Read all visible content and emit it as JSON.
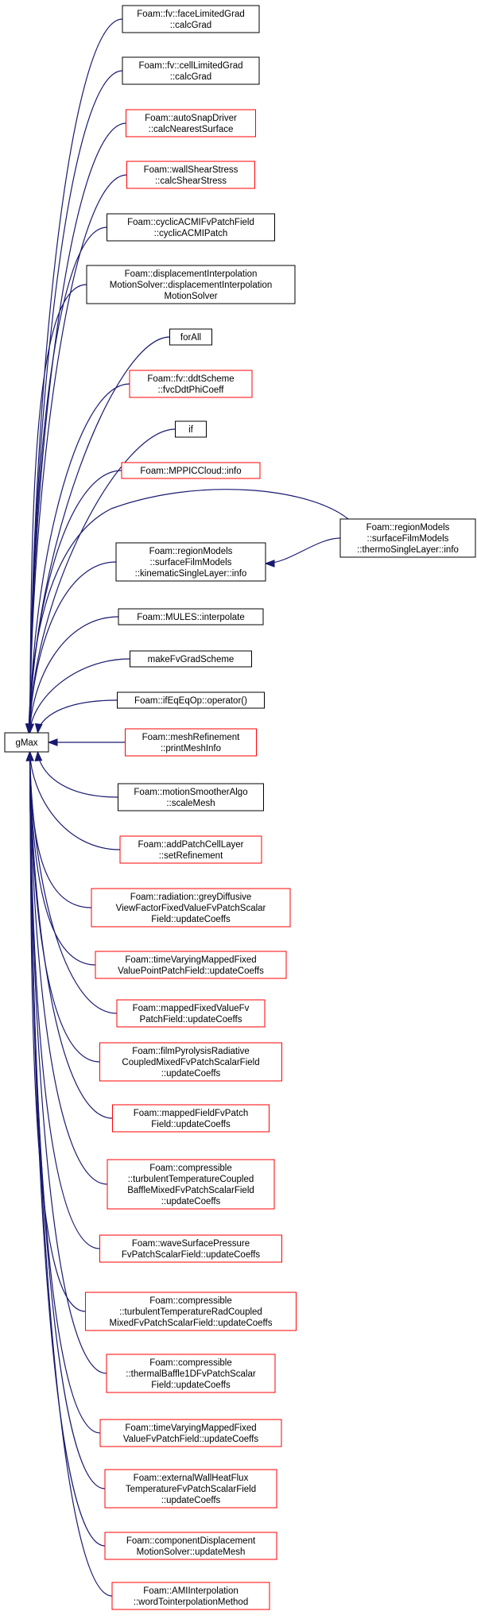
{
  "colors": {
    "edge": "#191970",
    "border_black": "#000000",
    "border_red": "#ff0000",
    "root_fill": "#bfbfbf"
  },
  "root": {
    "label": [
      "gMax"
    ]
  },
  "callers": [
    {
      "id": "n1",
      "label": [
        "Foam::fv::faceLimitedGrad",
        "::calcGrad"
      ],
      "border": "black"
    },
    {
      "id": "n2",
      "label": [
        "Foam::fv::cellLimitedGrad",
        "::calcGrad"
      ],
      "border": "black"
    },
    {
      "id": "n3",
      "label": [
        "Foam::autoSnapDriver",
        "::calcNearestSurface"
      ],
      "border": "red"
    },
    {
      "id": "n4",
      "label": [
        "Foam::wallShearStress",
        "::calcShearStress"
      ],
      "border": "red"
    },
    {
      "id": "n5",
      "label": [
        "Foam::cyclicACMIFvPatchField",
        "::cyclicACMIPatch"
      ],
      "border": "black"
    },
    {
      "id": "n6",
      "label": [
        "Foam::displacementInterpolation",
        "MotionSolver::displacementInterpolation",
        "MotionSolver"
      ],
      "border": "black"
    },
    {
      "id": "n7",
      "label": [
        "forAll"
      ],
      "border": "black"
    },
    {
      "id": "n8",
      "label": [
        "Foam::fv::ddtScheme",
        "::fvcDdtPhiCoeff"
      ],
      "border": "red"
    },
    {
      "id": "n9",
      "label": [
        "if"
      ],
      "border": "black"
    },
    {
      "id": "n10",
      "label": [
        "Foam::MPPICCloud::info"
      ],
      "border": "red"
    },
    {
      "id": "n11",
      "label": [
        "Foam::regionModels",
        "::surfaceFilmModels",
        "::kinematicSingleLayer::info"
      ],
      "border": "black"
    },
    {
      "id": "n12",
      "label": [
        "Foam::MULES::interpolate"
      ],
      "border": "black"
    },
    {
      "id": "n13",
      "label": [
        "makeFvGradScheme"
      ],
      "border": "black"
    },
    {
      "id": "n14",
      "label": [
        "Foam::ifEqEqOp::operator()"
      ],
      "border": "black"
    },
    {
      "id": "n15",
      "label": [
        "Foam::meshRefinement",
        "::printMeshInfo"
      ],
      "border": "red"
    },
    {
      "id": "n16",
      "label": [
        "Foam::motionSmootherAlgo",
        "::scaleMesh"
      ],
      "border": "black"
    },
    {
      "id": "n17",
      "label": [
        "Foam::addPatchCellLayer",
        "::setRefinement"
      ],
      "border": "red"
    },
    {
      "id": "n18",
      "label": [
        "Foam::radiation::greyDiffusive",
        "ViewFactorFixedValueFvPatchScalar",
        "Field::updateCoeffs"
      ],
      "border": "red"
    },
    {
      "id": "n19",
      "label": [
        "Foam::timeVaryingMappedFixed",
        "ValuePointPatchField::updateCoeffs"
      ],
      "border": "red"
    },
    {
      "id": "n20",
      "label": [
        "Foam::mappedFixedValueFv",
        "PatchField::updateCoeffs"
      ],
      "border": "red"
    },
    {
      "id": "n21",
      "label": [
        "Foam::filmPyrolysisRadiative",
        "CoupledMixedFvPatchScalarField",
        "::updateCoeffs"
      ],
      "border": "red"
    },
    {
      "id": "n22",
      "label": [
        "Foam::mappedFieldFvPatch",
        "Field::updateCoeffs"
      ],
      "border": "red"
    },
    {
      "id": "n23",
      "label": [
        "Foam::compressible",
        "::turbulentTemperatureCoupled",
        "BaffleMixedFvPatchScalarField",
        "::updateCoeffs"
      ],
      "border": "red"
    },
    {
      "id": "n24",
      "label": [
        "Foam::waveSurfacePressure",
        "FvPatchScalarField::updateCoeffs"
      ],
      "border": "red"
    },
    {
      "id": "n25",
      "label": [
        "Foam::compressible",
        "::turbulentTemperatureRadCoupled",
        "MixedFvPatchScalarField::updateCoeffs"
      ],
      "border": "red"
    },
    {
      "id": "n26",
      "label": [
        "Foam::compressible",
        "::thermalBaffle1DFvPatchScalar",
        "Field::updateCoeffs"
      ],
      "border": "red"
    },
    {
      "id": "n27",
      "label": [
        "Foam::timeVaryingMappedFixed",
        "ValueFvPatchField::updateCoeffs"
      ],
      "border": "red"
    },
    {
      "id": "n28",
      "label": [
        "Foam::externalWallHeatFlux",
        "TemperatureFvPatchScalarField",
        "::updateCoeffs"
      ],
      "border": "red"
    },
    {
      "id": "n29",
      "label": [
        "Foam::componentDisplacement",
        "MotionSolver::updateMesh"
      ],
      "border": "red"
    },
    {
      "id": "n30",
      "label": [
        "Foam::AMIInterpolation",
        "::wordTointerpolationMethod"
      ],
      "border": "red"
    }
  ],
  "secondary": [
    {
      "id": "n31",
      "label": [
        "Foam::regionModels",
        "::surfaceFilmModels",
        "::thermoSingleLayer::info"
      ],
      "border": "black"
    }
  ],
  "edges": [
    {
      "from": "n31",
      "to": "n10"
    },
    {
      "from": "n31",
      "to": "n11"
    }
  ]
}
